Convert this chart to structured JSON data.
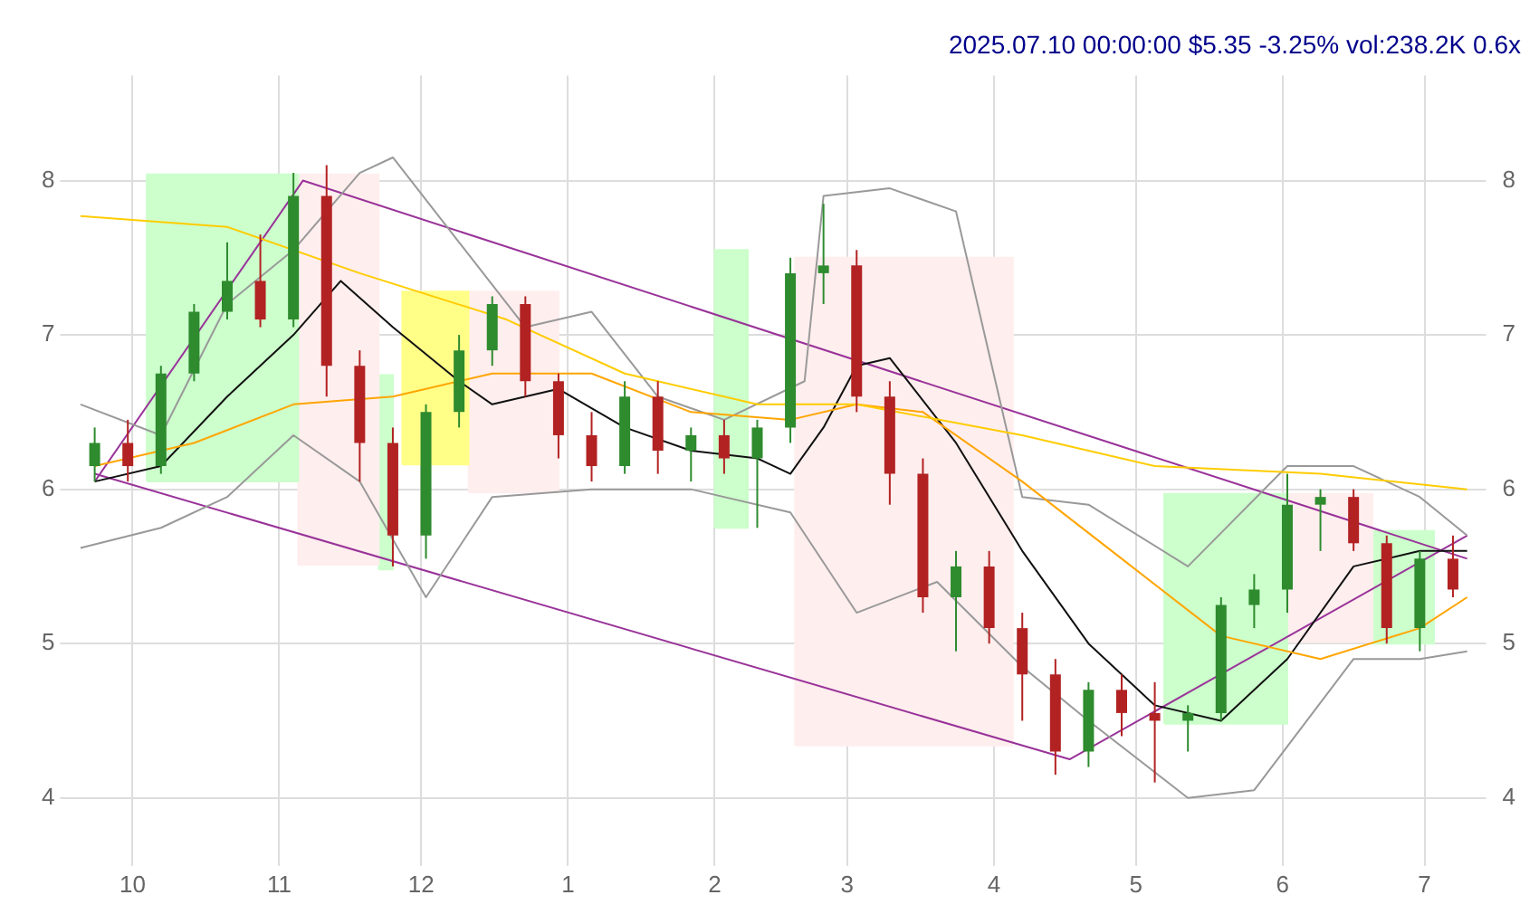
{
  "chart_data": {
    "type": "candlestick",
    "title": "2025.07.10 00:00:00 $5.35 -3.25% vol:238.2K 0.6x",
    "x": [
      "2024-09-23",
      "2024-09-30",
      "2024-10-07",
      "2024-10-14",
      "2024-10-21",
      "2024-10-28",
      "2024-11-04",
      "2024-11-11",
      "2024-11-18",
      "2024-11-25",
      "2024-12-02",
      "2024-12-09",
      "2024-12-16",
      "2024-12-23",
      "2024-12-30",
      "2025-01-06",
      "2025-01-13",
      "2025-01-20",
      "2025-01-27",
      "2025-02-03",
      "2025-02-10",
      "2025-02-17",
      "2025-02-24",
      "2025-03-03",
      "2025-03-10",
      "2025-03-17",
      "2025-03-24",
      "2025-03-31",
      "2025-04-07",
      "2025-04-14",
      "2025-04-21",
      "2025-04-28",
      "2025-05-05",
      "2025-05-12",
      "2025-05-19",
      "2025-05-26",
      "2025-06-02",
      "2025-06-09",
      "2025-06-16",
      "2025-06-23",
      "2025-06-30",
      "2025-07-07"
    ],
    "ohlc": [
      [
        6.15,
        6.4,
        6.05,
        6.3
      ],
      [
        6.3,
        6.45,
        6.05,
        6.15
      ],
      [
        6.15,
        6.8,
        6.1,
        6.75
      ],
      [
        6.75,
        7.2,
        6.7,
        7.15
      ],
      [
        7.15,
        7.6,
        7.1,
        7.35
      ],
      [
        7.35,
        7.65,
        7.05,
        7.1
      ],
      [
        7.1,
        8.05,
        7.05,
        7.9
      ],
      [
        7.9,
        8.1,
        6.6,
        6.8
      ],
      [
        6.8,
        6.9,
        6.05,
        6.3
      ],
      [
        6.3,
        6.4,
        5.5,
        5.7
      ],
      [
        5.7,
        6.55,
        5.55,
        6.5
      ],
      [
        6.5,
        7.0,
        6.4,
        6.9
      ],
      [
        6.9,
        7.25,
        6.8,
        7.2
      ],
      [
        7.2,
        7.25,
        6.6,
        6.7
      ],
      [
        6.7,
        6.75,
        6.2,
        6.35
      ],
      [
        6.35,
        6.5,
        6.05,
        6.15
      ],
      [
        6.15,
        6.7,
        6.1,
        6.6
      ],
      [
        6.6,
        6.7,
        6.1,
        6.25
      ],
      [
        6.25,
        6.4,
        6.05,
        6.35
      ],
      [
        6.35,
        6.45,
        6.1,
        6.2
      ],
      [
        6.2,
        6.45,
        5.75,
        6.4
      ],
      [
        6.4,
        7.5,
        6.3,
        7.4
      ],
      [
        7.4,
        7.85,
        7.2,
        7.45
      ],
      [
        7.45,
        7.55,
        6.5,
        6.6
      ],
      [
        6.6,
        6.7,
        5.9,
        6.1
      ],
      [
        6.1,
        6.2,
        5.2,
        5.3
      ],
      [
        5.3,
        5.6,
        4.95,
        5.5
      ],
      [
        5.5,
        5.6,
        5.0,
        5.1
      ],
      [
        5.1,
        5.2,
        4.5,
        4.8
      ],
      [
        4.8,
        4.9,
        4.15,
        4.3
      ],
      [
        4.3,
        4.75,
        4.2,
        4.7
      ],
      [
        4.7,
        4.8,
        4.4,
        4.55
      ],
      [
        4.55,
        4.75,
        4.1,
        4.5
      ],
      [
        4.5,
        4.6,
        4.3,
        4.55
      ],
      [
        4.55,
        5.3,
        4.5,
        5.25
      ],
      [
        5.25,
        5.45,
        5.1,
        5.35
      ],
      [
        5.35,
        6.1,
        5.2,
        5.9
      ],
      [
        5.9,
        6.0,
        5.6,
        5.95
      ],
      [
        5.95,
        6.0,
        5.6,
        5.65
      ],
      [
        5.65,
        5.7,
        5.0,
        5.1
      ],
      [
        5.1,
        5.6,
        4.95,
        5.55
      ],
      [
        5.55,
        5.7,
        5.3,
        5.35
      ]
    ],
    "colors": [
      "#2e8b2e",
      "#b22222",
      "#2e8b2e",
      "#2e8b2e",
      "#2e8b2e",
      "#b22222",
      "#2e8b2e",
      "#b22222",
      "#b22222",
      "#b22222",
      "#2e8b2e",
      "#2e8b2e",
      "#2e8b2e",
      "#b22222",
      "#b22222",
      "#b22222",
      "#2e8b2e",
      "#b22222",
      "#2e8b2e",
      "#b22222",
      "#2e8b2e",
      "#2e8b2e",
      "#2e8b2e",
      "#b22222",
      "#b22222",
      "#b22222",
      "#2e8b2e",
      "#b22222",
      "#b22222",
      "#b22222",
      "#2e8b2e",
      "#b22222",
      "#b22222",
      "#2e8b2e",
      "#2e8b2e",
      "#2e8b2e",
      "#2e8b2e",
      "#2e8b2e",
      "#b22222",
      "#b22222",
      "#2e8b2e",
      "#b22222"
    ],
    "series": [
      {
        "type": "area",
        "color": "#ccffcc",
        "x": [
          "2024-10-04",
          "2024-10-04",
          "2024-11-05",
          "2024-11-05",
          "2024-10-04"
        ],
        "values": [
          6.05,
          8.04,
          8.04,
          6.05,
          6.05
        ]
      },
      {
        "type": "area",
        "color": "#ffeeee",
        "x": [
          "2024-11-05",
          "2024-11-05",
          "2024-11-22",
          "2024-11-22",
          "2024-11-05"
        ],
        "values": [
          5.51,
          8.04,
          8.04,
          5.51,
          5.51
        ]
      },
      {
        "type": "area",
        "color": "#ccffcc",
        "x": [
          "2024-11-22",
          "2024-11-22",
          "2024-11-25",
          "2024-11-25",
          "2024-11-22"
        ],
        "values": [
          5.48,
          6.74,
          6.74,
          5.48,
          5.48
        ]
      },
      {
        "type": "area",
        "color": "#ffff88",
        "x": [
          "2024-11-27",
          "2024-11-27",
          "2024-12-11",
          "2024-12-11",
          "2024-11-27"
        ],
        "values": [
          6.16,
          7.28,
          7.28,
          6.16,
          6.16
        ]
      },
      {
        "type": "area",
        "color": "#ffeeee",
        "x": [
          "2024-12-11",
          "2024-12-11",
          "2024-12-30",
          "2024-12-30",
          "2024-12-11"
        ],
        "values": [
          5.98,
          7.28,
          7.28,
          5.98,
          5.98
        ]
      },
      {
        "type": "area",
        "color": "#ccffcc",
        "x": [
          "2025-02-01",
          "2025-02-01",
          "2025-02-08",
          "2025-02-08",
          "2025-02-01"
        ],
        "values": [
          5.75,
          7.55,
          7.55,
          5.75,
          5.75
        ]
      },
      {
        "type": "area",
        "color": "#ffeeee",
        "x": [
          "2025-02-18",
          "2025-02-18",
          "2025-04-05",
          "2025-04-05",
          "2025-02-18"
        ],
        "values": [
          4.34,
          7.5,
          7.5,
          4.34,
          4.34
        ]
      },
      {
        "type": "area",
        "color": "#ccffcc",
        "x": [
          "2025-05-07",
          "2025-05-07",
          "2025-06-02",
          "2025-06-02",
          "2025-05-07"
        ],
        "values": [
          4.48,
          5.97,
          5.97,
          4.48,
          4.48
        ]
      },
      {
        "type": "area",
        "color": "#ffeeee",
        "x": [
          "2025-06-02",
          "2025-06-02",
          "2025-06-20",
          "2025-06-20",
          "2025-06-02"
        ],
        "values": [
          5.01,
          5.97,
          5.97,
          5.01,
          5.01
        ]
      },
      {
        "type": "area",
        "color": "#ccffcc",
        "x": [
          "2025-06-20",
          "2025-06-20",
          "2025-07-03",
          "2025-07-03",
          "2025-06-20"
        ],
        "values": [
          5.0,
          5.73,
          5.73,
          5.0,
          5.0
        ]
      },
      {
        "type": "line",
        "color": "#ffcc00",
        "x": [
          "2024-09-20",
          "2024-10-21",
          "2024-11-18",
          "2024-12-19",
          "2025-01-13",
          "2025-02-10",
          "2025-03-03",
          "2025-04-07",
          "2025-05-05",
          "2025-06-09",
          "2025-07-10"
        ],
        "values": [
          7.77,
          7.7,
          7.4,
          7.1,
          6.75,
          6.55,
          6.55,
          6.35,
          6.15,
          6.1,
          6.0
        ]
      },
      {
        "type": "line",
        "color": "#ffa500",
        "x": [
          "2024-09-23",
          "2024-10-14",
          "2024-11-04",
          "2024-11-25",
          "2024-12-16",
          "2025-01-06",
          "2025-01-27",
          "2025-02-17",
          "2025-03-03",
          "2025-03-17",
          "2025-04-07",
          "2025-04-28",
          "2025-05-19",
          "2025-06-09",
          "2025-06-30",
          "2025-07-10"
        ],
        "values": [
          6.15,
          6.3,
          6.55,
          6.6,
          6.75,
          6.75,
          6.5,
          6.45,
          6.55,
          6.5,
          6.05,
          5.55,
          5.05,
          4.9,
          5.1,
          5.3
        ]
      },
      {
        "type": "line",
        "color": "#999999",
        "x": [
          "2024-09-20",
          "2024-10-07",
          "2024-10-21",
          "2024-11-04",
          "2024-11-18",
          "2024-11-25",
          "2024-12-09",
          "2024-12-23",
          "2025-01-06",
          "2025-01-20",
          "2025-02-03",
          "2025-02-20",
          "2025-02-24",
          "2025-03-10",
          "2025-03-24",
          "2025-04-07",
          "2025-04-21",
          "2025-05-12",
          "2025-06-02",
          "2025-06-16",
          "2025-06-30",
          "2025-07-10"
        ],
        "values": [
          6.55,
          6.35,
          7.2,
          7.55,
          8.05,
          8.15,
          7.6,
          7.05,
          7.15,
          6.6,
          6.45,
          6.7,
          7.9,
          7.95,
          7.8,
          5.95,
          5.9,
          5.5,
          6.15,
          6.15,
          5.95,
          5.7
        ]
      },
      {
        "type": "line",
        "color": "#999999",
        "x": [
          "2024-09-20",
          "2024-10-07",
          "2024-10-21",
          "2024-11-04",
          "2024-11-18",
          "2024-12-02",
          "2024-12-16",
          "2025-01-06",
          "2025-01-27",
          "2025-02-17",
          "2025-03-03",
          "2025-03-20",
          "2025-04-07",
          "2025-04-21",
          "2025-05-12",
          "2025-05-26",
          "2025-06-16",
          "2025-06-30",
          "2025-07-10"
        ],
        "values": [
          5.62,
          5.75,
          5.95,
          6.35,
          6.05,
          5.3,
          5.95,
          6.0,
          6.0,
          5.85,
          5.2,
          5.4,
          4.85,
          4.5,
          4.0,
          4.05,
          4.9,
          4.9,
          4.95
        ]
      },
      {
        "type": "line",
        "color": "#111111",
        "x": [
          "2024-09-23",
          "2024-10-07",
          "2024-10-21",
          "2024-11-04",
          "2024-11-14",
          "2024-11-25",
          "2024-12-09",
          "2024-12-16",
          "2024-12-30",
          "2025-01-13",
          "2025-01-27",
          "2025-02-10",
          "2025-02-17",
          "2025-02-24",
          "2025-03-03",
          "2025-03-10",
          "2025-03-24",
          "2025-04-07",
          "2025-04-21",
          "2025-05-05",
          "2025-05-19",
          "2025-06-02",
          "2025-06-16",
          "2025-06-30",
          "2025-07-10"
        ],
        "values": [
          6.05,
          6.15,
          6.6,
          7.0,
          7.35,
          7.05,
          6.7,
          6.55,
          6.65,
          6.4,
          6.25,
          6.2,
          6.1,
          6.4,
          6.8,
          6.85,
          6.3,
          5.6,
          5.0,
          4.6,
          4.5,
          4.9,
          5.5,
          5.6,
          5.6
        ]
      },
      {
        "type": "line",
        "color": "#993399",
        "x": [
          "2024-09-23",
          "2024-11-06",
          "2025-07-10"
        ],
        "values": [
          6.05,
          8.0,
          5.55
        ]
      },
      {
        "type": "line",
        "color": "#993399",
        "x": [
          "2024-09-23",
          "2025-04-17",
          "2025-07-10"
        ],
        "values": [
          6.1,
          4.25,
          5.7
        ]
      }
    ],
    "xlim": [
      "2024-09-18",
      "2025-07-14"
    ],
    "xticks": [
      {
        "value": "2024-10-01",
        "label": "10"
      },
      {
        "value": "2024-11-01",
        "label": "11"
      },
      {
        "value": "2024-12-01",
        "label": "12"
      },
      {
        "value": "2025-01-01",
        "label": "1"
      },
      {
        "value": "2025-02-01",
        "label": "2"
      },
      {
        "value": "2025-03-01",
        "label": "3"
      },
      {
        "value": "2025-04-01",
        "label": "4"
      },
      {
        "value": "2025-05-01",
        "label": "5"
      },
      {
        "value": "2025-06-01",
        "label": "6"
      },
      {
        "value": "2025-07-01",
        "label": "7"
      }
    ],
    "ylim": [
      3.63,
      8.68
    ],
    "yticks": [
      4,
      5,
      6,
      7,
      8
    ],
    "y2lim": [
      3.63,
      8.68
    ],
    "y2ticks": [
      4,
      5,
      6,
      7,
      8
    ],
    "grid": true
  }
}
